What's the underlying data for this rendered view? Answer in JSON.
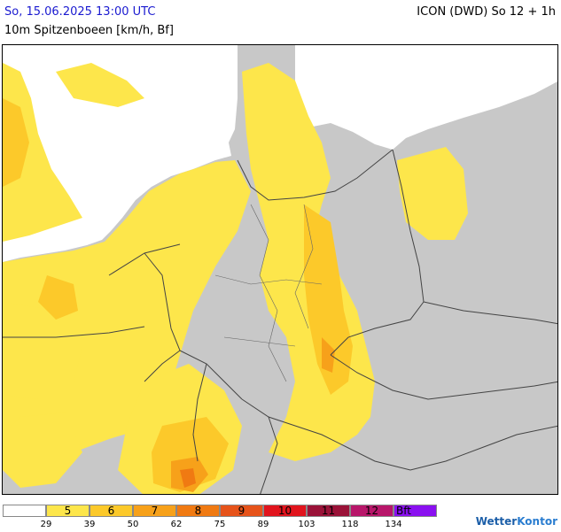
{
  "header": {
    "date_label": "So, 15.06.2025 13:00 UTC",
    "model_label": "ICON (DWD) So 12 + 1h",
    "param_label": "10m Spitzenboeen [km/h, Bf]"
  },
  "colors": {
    "land": "#c8c8c8",
    "sea": "#ffffff",
    "bf5": "#fde64b",
    "bf6": "#fcc92a",
    "bf7": "#f7a11a",
    "bf8": "#f07a12",
    "bf9": "#e6531a",
    "border": "#444444"
  },
  "legend": {
    "cells": [
      {
        "label": "",
        "color": "#ffffff"
      },
      {
        "label": "5",
        "color": "#fde64b"
      },
      {
        "label": "6",
        "color": "#fcc92a"
      },
      {
        "label": "7",
        "color": "#f7a11a"
      },
      {
        "label": "8",
        "color": "#f07a12"
      },
      {
        "label": "9",
        "color": "#e6531a"
      },
      {
        "label": "10",
        "color": "#e1141d"
      },
      {
        "label": "11",
        "color": "#9a1238"
      },
      {
        "label": "12",
        "color": "#b8166a"
      },
      {
        "label": "Bft",
        "color": "#8a10f0"
      }
    ],
    "ticks": [
      "29",
      "39",
      "50",
      "62",
      "75",
      "89",
      "103",
      "118",
      "134"
    ]
  },
  "brand": {
    "name_a": "Wetter",
    "name_b": "Kontor"
  }
}
